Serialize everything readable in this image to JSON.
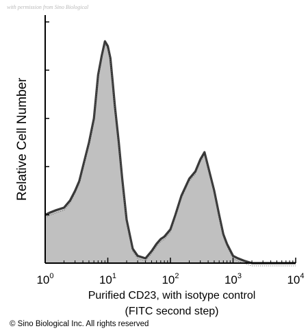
{
  "watermark_text": "with permission from Sino Biological",
  "copyright": "© Sino Biological Inc. All rights reserved",
  "chart_data": {
    "type": "area",
    "title": "",
    "xlabel_line1": "Purified CD23, with isotype control",
    "xlabel_line2": "(FITC second step)",
    "ylabel": "Relative Cell Number",
    "x_scale": "log",
    "xlim": [
      1,
      10000
    ],
    "ylim": [
      0,
      100
    ],
    "x_tick_labels": [
      {
        "base": "10",
        "exp": "0",
        "value": 1
      },
      {
        "base": "10",
        "exp": "1",
        "value": 10
      },
      {
        "base": "10",
        "exp": "2",
        "value": 100
      },
      {
        "base": "10",
        "exp": "3",
        "value": 1000
      },
      {
        "base": "10",
        "exp": "4",
        "value": 10000
      }
    ],
    "y_ticks": [
      0,
      20,
      40,
      60,
      80,
      100
    ],
    "grid": false,
    "legend": "none",
    "series": [
      {
        "color": "#1a1a1a",
        "fill": "#8c8c8c",
        "x": [
          1,
          1.2,
          1.5,
          2,
          2.5,
          3,
          3.5,
          4,
          5,
          6,
          7,
          8,
          9,
          10,
          11,
          12,
          13,
          15,
          17,
          20,
          25,
          30,
          40,
          50,
          60,
          70,
          80,
          100,
          120,
          150,
          200,
          250,
          300,
          350,
          400,
          500,
          600,
          700,
          800,
          1000,
          1200,
          1500,
          2000,
          3000,
          5000,
          10000
        ],
        "y": [
          20,
          21,
          22,
          23,
          26,
          30,
          34,
          40,
          50,
          60,
          78,
          86,
          92,
          90,
          85,
          75,
          65,
          50,
          35,
          18,
          6,
          3,
          2,
          5,
          8,
          10,
          11,
          14,
          20,
          28,
          35,
          38,
          43,
          46,
          40,
          30,
          20,
          12,
          8,
          3,
          2,
          1,
          0,
          0,
          0,
          0
        ]
      }
    ]
  }
}
